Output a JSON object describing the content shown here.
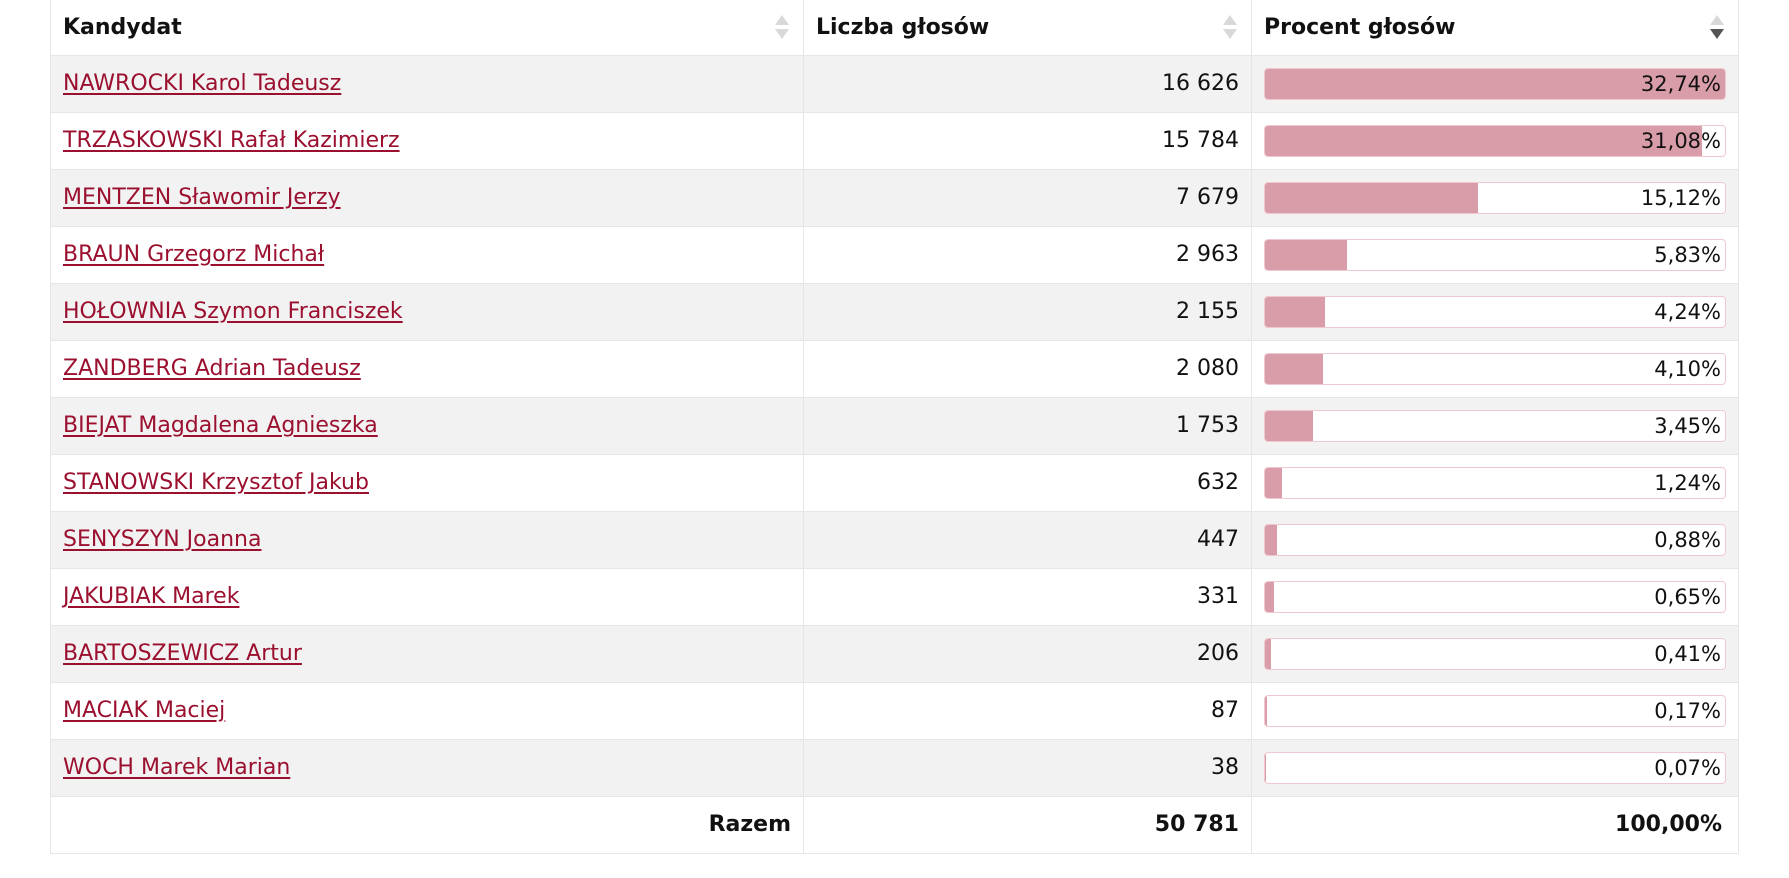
{
  "table": {
    "headers": {
      "candidate": "Kandydat",
      "votes": "Liczba głosów",
      "percent": "Procent głosów"
    },
    "sorted_column": "percent",
    "sort_direction": "descending",
    "colors": {
      "link": "#9b0f2f",
      "bar_fill": "#d99ca9",
      "bar_border": "#f0c9d0",
      "row_alt": "#f2f2f2"
    },
    "rows": [
      {
        "name": "NAWROCKI Karol Tadeusz",
        "votes": "16 626",
        "percent": "32,74%",
        "share": 1.0
      },
      {
        "name": "TRZASKOWSKI Rafał Kazimierz",
        "votes": "15 784",
        "percent": "31,08%",
        "share": 0.949
      },
      {
        "name": "MENTZEN Sławomir Jerzy",
        "votes": "7 679",
        "percent": "15,12%",
        "share": 0.462
      },
      {
        "name": "BRAUN Grzegorz Michał",
        "votes": "2 963",
        "percent": "5,83%",
        "share": 0.178
      },
      {
        "name": "HOŁOWNIA Szymon Franciszek",
        "votes": "2 155",
        "percent": "4,24%",
        "share": 0.13
      },
      {
        "name": "ZANDBERG Adrian Tadeusz",
        "votes": "2 080",
        "percent": "4,10%",
        "share": 0.125
      },
      {
        "name": "BIEJAT Magdalena Agnieszka",
        "votes": "1 753",
        "percent": "3,45%",
        "share": 0.105
      },
      {
        "name": "STANOWSKI Krzysztof Jakub",
        "votes": "632",
        "percent": "1,24%",
        "share": 0.038
      },
      {
        "name": "SENYSZYN Joanna",
        "votes": "447",
        "percent": "0,88%",
        "share": 0.027
      },
      {
        "name": "JAKUBIAK Marek",
        "votes": "331",
        "percent": "0,65%",
        "share": 0.02
      },
      {
        "name": "BARTOSZEWICZ Artur",
        "votes": "206",
        "percent": "0,41%",
        "share": 0.013
      },
      {
        "name": "MACIAK Maciej",
        "votes": "87",
        "percent": "0,17%",
        "share": 0.005
      },
      {
        "name": "WOCH Marek Marian",
        "votes": "38",
        "percent": "0,07%",
        "share": 0.002
      }
    ],
    "footer": {
      "label": "Razem",
      "votes": "50 781",
      "percent": "100,00%"
    }
  }
}
